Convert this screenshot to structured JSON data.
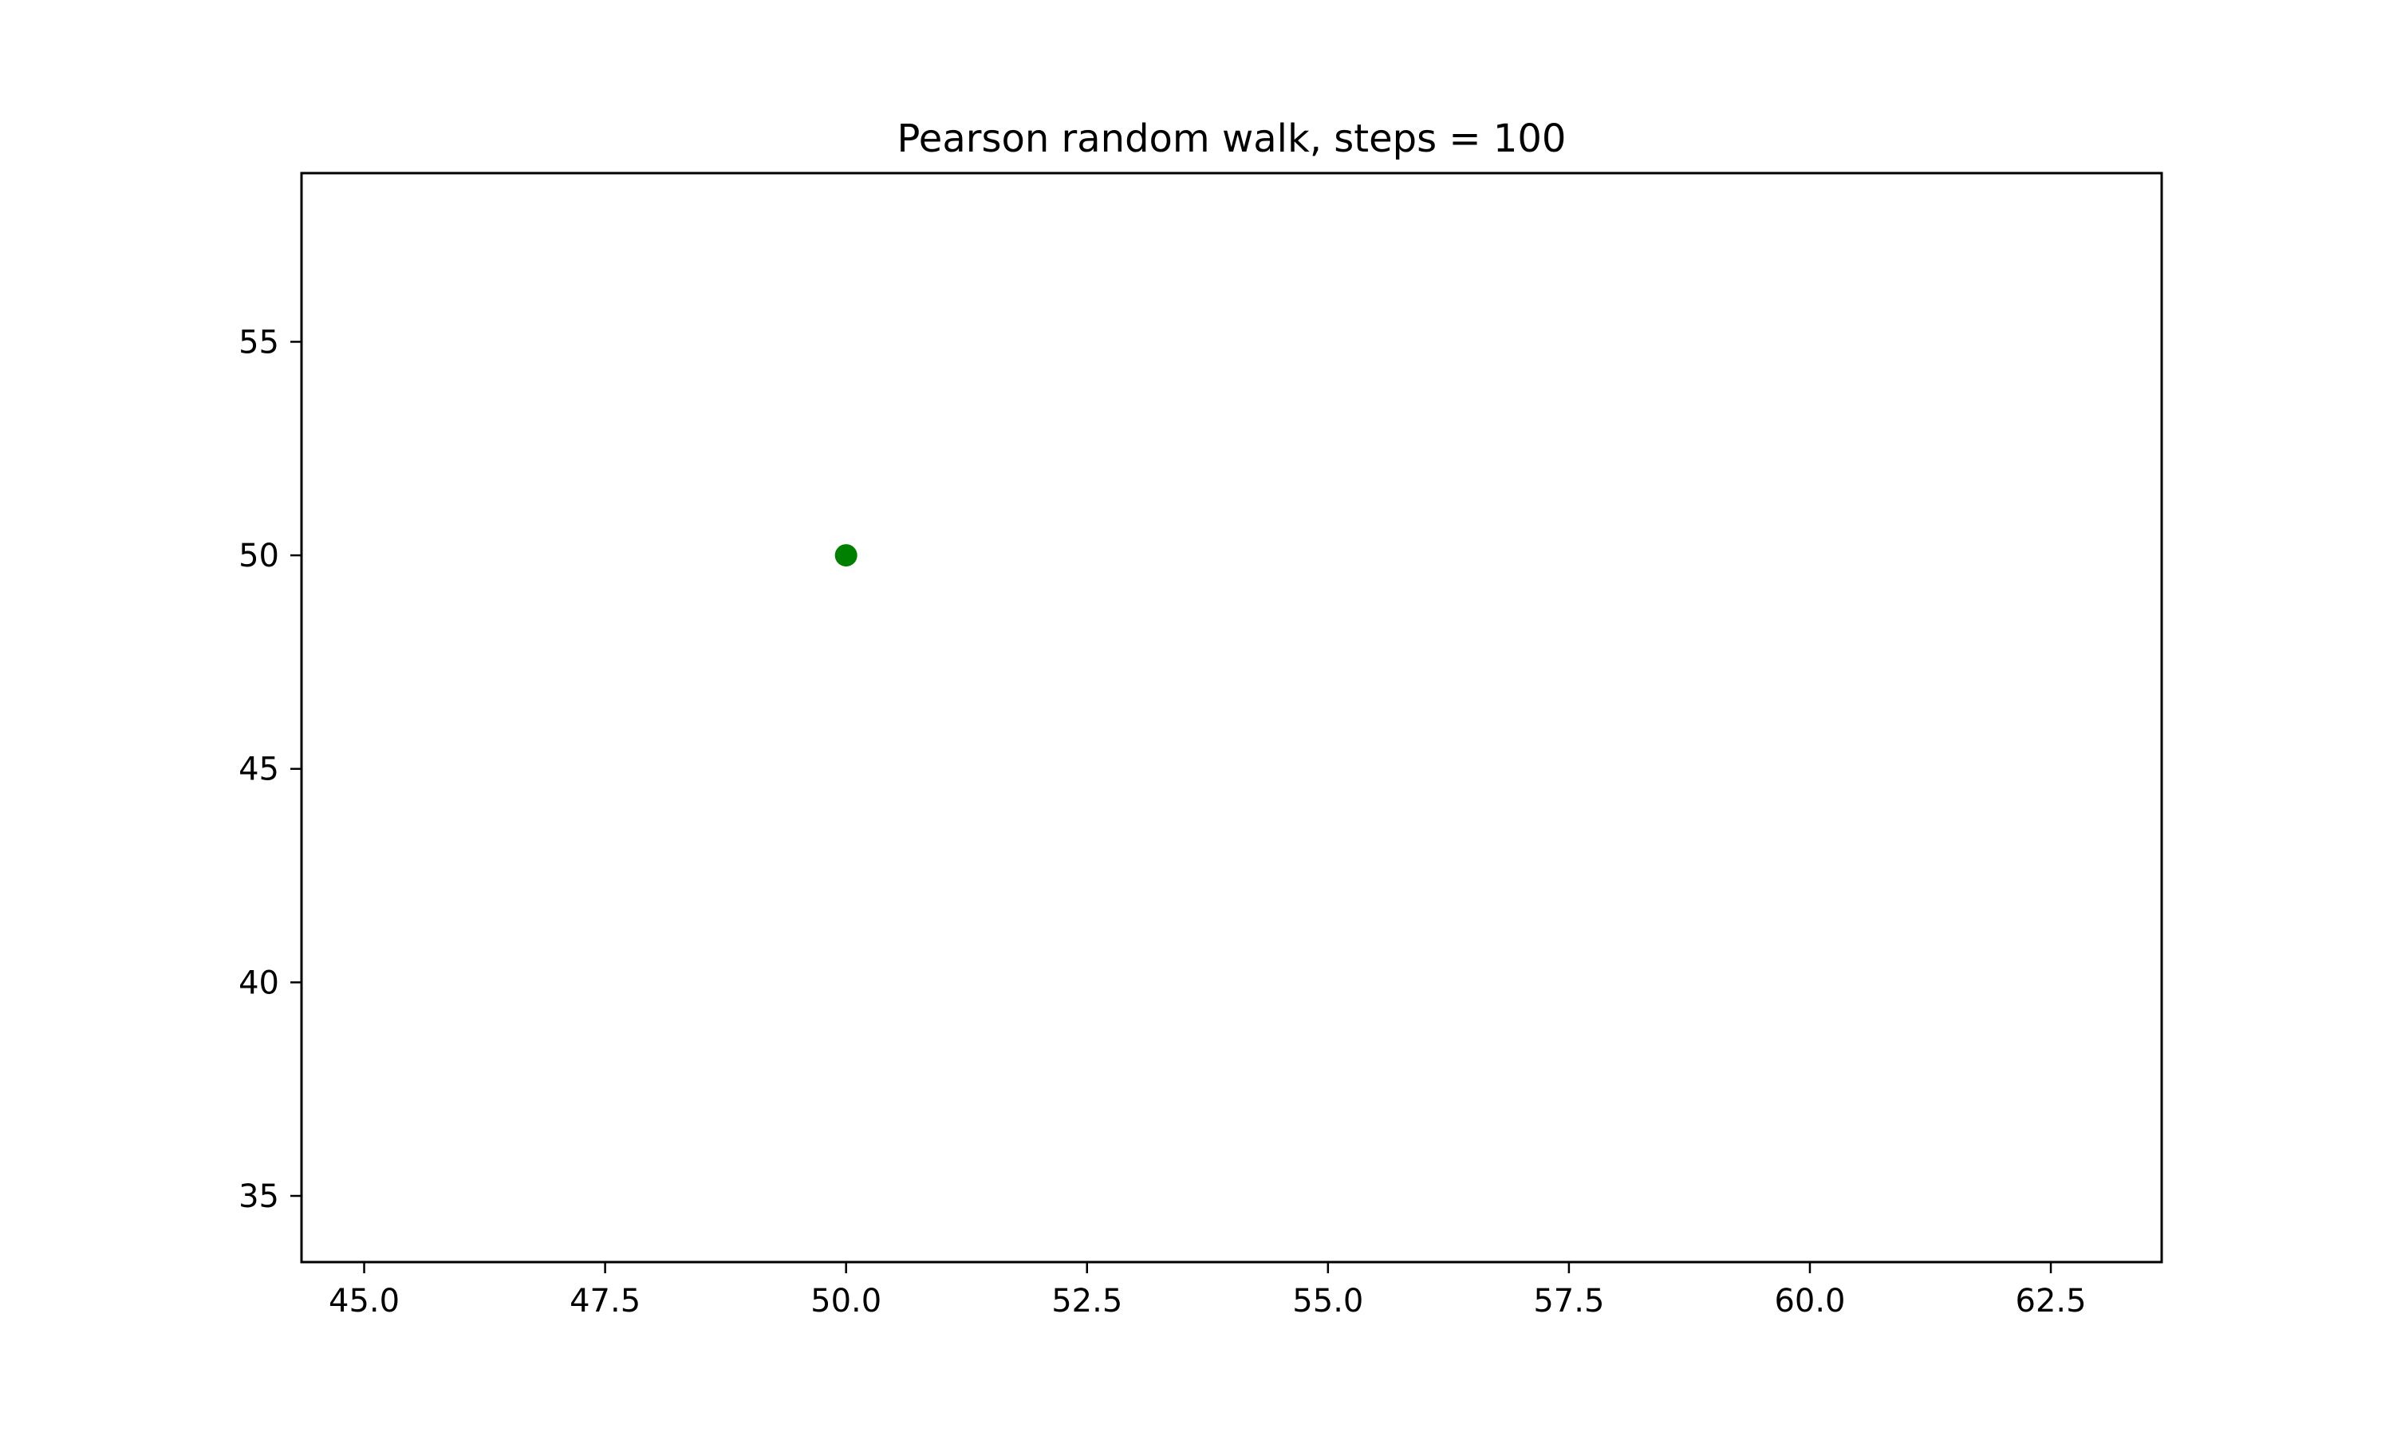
{
  "chart_data": {
    "type": "scatter",
    "title": "Pearson random walk, steps = 100",
    "xlabel": "",
    "ylabel": "",
    "xlim": [
      44.35,
      63.65
    ],
    "ylim": [
      33.45,
      58.95
    ],
    "x_ticks": [
      45.0,
      47.5,
      50.0,
      52.5,
      55.0,
      57.5,
      60.0,
      62.5
    ],
    "x_tick_labels": [
      "45.0",
      "47.5",
      "50.0",
      "52.5",
      "55.0",
      "57.5",
      "60.0",
      "62.5"
    ],
    "y_ticks": [
      35,
      40,
      45,
      50,
      55
    ],
    "y_tick_labels": [
      "35",
      "40",
      "45",
      "50",
      "55"
    ],
    "grid": false,
    "legend": "none",
    "series": [
      {
        "color": "#008000",
        "points": [
          {
            "x": 50.0,
            "y": 50.0
          }
        ]
      }
    ]
  }
}
